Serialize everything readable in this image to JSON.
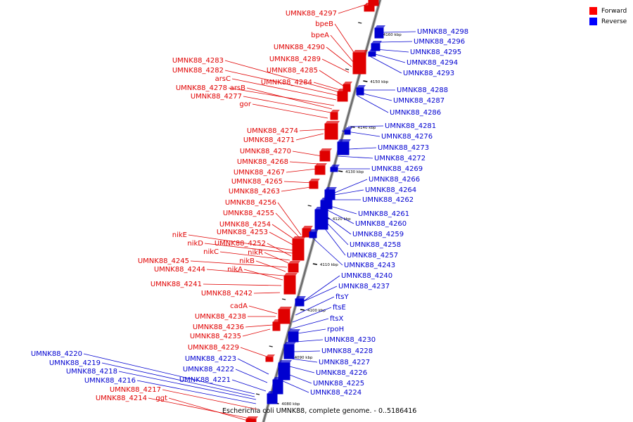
{
  "legend": [
    {
      "label": "Forward",
      "color": "#ff0000"
    },
    {
      "label": "Reverse",
      "color": "#0000ff"
    }
  ],
  "caption": "Escherichia coli UMNK88, complete genome. - 0..5186416",
  "colors": {
    "forward": "#e00000",
    "reverse": "#0000d0",
    "axis": "#888888"
  },
  "ticks": [
    "4160 kbp",
    "4150 kbp",
    "4140 kbp",
    "4130 kbp",
    "4120 kbp",
    "4110 kbp",
    "4100 kbp",
    "4090 kbp",
    "4080 kbp"
  ],
  "forward_genes": [
    "UMNK88_4297",
    "bpeB",
    "bpeA",
    "UMNK88_4290",
    "UMNK88_4289",
    "UMNK88_4283",
    "UMNK88_4285",
    "UMNK88_4282",
    "arsC",
    "UMNK88_4284",
    "UMNK88_4278",
    "arsB",
    "UMNK88_4277",
    "gor",
    "UMNK88_4274",
    "UMNK88_4271",
    "UMNK88_4270",
    "UMNK88_4268",
    "UMNK88_4267",
    "UMNK88_4265",
    "UMNK88_4263",
    "UMNK88_4256",
    "UMNK88_4255",
    "UMNK88_4254",
    "UMNK88_4253",
    "nikE",
    "nikD",
    "UMNK88_4252",
    "nikC",
    "nikR",
    "UMNK88_4245",
    "nikB",
    "UMNK88_4244",
    "nikA",
    "UMNK88_4241",
    "UMNK88_4242",
    "cadA",
    "UMNK88_4238",
    "UMNK88_4236",
    "UMNK88_4235",
    "UMNK88_4229",
    "UMNK88_4217",
    "UMNK88_4214",
    "ggt"
  ],
  "reverse_genes": [
    "UMNK88_4298",
    "UMNK88_4296",
    "UMNK88_4295",
    "UMNK88_4294",
    "UMNK88_4293",
    "UMNK88_4288",
    "UMNK88_4287",
    "UMNK88_4286",
    "UMNK88_4281",
    "UMNK88_4276",
    "UMNK88_4273",
    "UMNK88_4272",
    "UMNK88_4269",
    "UMNK88_4266",
    "UMNK88_4264",
    "UMNK88_4262",
    "UMNK88_4261",
    "UMNK88_4260",
    "UMNK88_4259",
    "UMNK88_4258",
    "UMNK88_4257",
    "UMNK88_4243",
    "UMNK88_4240",
    "UMNK88_4237",
    "ftsY",
    "ftsE",
    "ftsX",
    "rpoH",
    "UMNK88_4230",
    "UMNK88_4228",
    "UMNK88_4227",
    "UMNK88_4226",
    "UMNK88_4225",
    "UMNK88_4224",
    "UMNK88_4220",
    "UMNK88_4219",
    "UMNK88_4218",
    "UMNK88_4216",
    "UMNK88_4223",
    "UMNK88_4222",
    "UMNK88_4221"
  ]
}
